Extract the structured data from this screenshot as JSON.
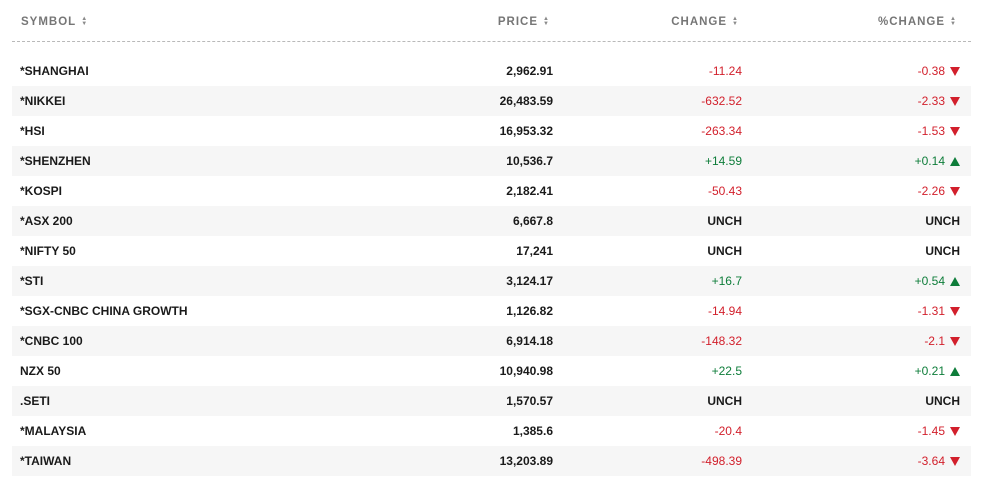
{
  "headers": {
    "symbol": "SYMBOL",
    "price": "PRICE",
    "change": "CHANGE",
    "pct_change": "%CHANGE"
  },
  "sort_icon": "sort-arrows-icon",
  "colors": {
    "negative": "#d21f2b",
    "positive": "#0e7d3a"
  },
  "rows": [
    {
      "symbol": "*SHANGHAI",
      "price": "2,962.91",
      "change": "-11.24",
      "pct": "-0.38",
      "dir": "down"
    },
    {
      "symbol": "*NIKKEI",
      "price": "26,483.59",
      "change": "-632.52",
      "pct": "-2.33",
      "dir": "down"
    },
    {
      "symbol": "*HSI",
      "price": "16,953.32",
      "change": "-263.34",
      "pct": "-1.53",
      "dir": "down"
    },
    {
      "symbol": "*SHENZHEN",
      "price": "10,536.7",
      "change": "+14.59",
      "pct": "+0.14",
      "dir": "up"
    },
    {
      "symbol": "*KOSPI",
      "price": "2,182.41",
      "change": "-50.43",
      "pct": "-2.26",
      "dir": "down"
    },
    {
      "symbol": "*ASX 200",
      "price": "6,667.8",
      "change": "UNCH",
      "pct": "UNCH",
      "dir": "none"
    },
    {
      "symbol": "*NIFTY 50",
      "price": "17,241",
      "change": "UNCH",
      "pct": "UNCH",
      "dir": "none"
    },
    {
      "symbol": "*STI",
      "price": "3,124.17",
      "change": "+16.7",
      "pct": "+0.54",
      "dir": "up"
    },
    {
      "symbol": "*SGX-CNBC CHINA GROWTH",
      "price": "1,126.82",
      "change": "-14.94",
      "pct": "-1.31",
      "dir": "down"
    },
    {
      "symbol": "*CNBC 100",
      "price": "6,914.18",
      "change": "-148.32",
      "pct": "-2.1",
      "dir": "down"
    },
    {
      "symbol": "NZX 50",
      "price": "10,940.98",
      "change": "+22.5",
      "pct": "+0.21",
      "dir": "up"
    },
    {
      "symbol": ".SETI",
      "price": "1,570.57",
      "change": "UNCH",
      "pct": "UNCH",
      "dir": "none"
    },
    {
      "symbol": "*MALAYSIA",
      "price": "1,385.6",
      "change": "-20.4",
      "pct": "-1.45",
      "dir": "down"
    },
    {
      "symbol": "*TAIWAN",
      "price": "13,203.89",
      "change": "-498.39",
      "pct": "-3.64",
      "dir": "down"
    }
  ]
}
